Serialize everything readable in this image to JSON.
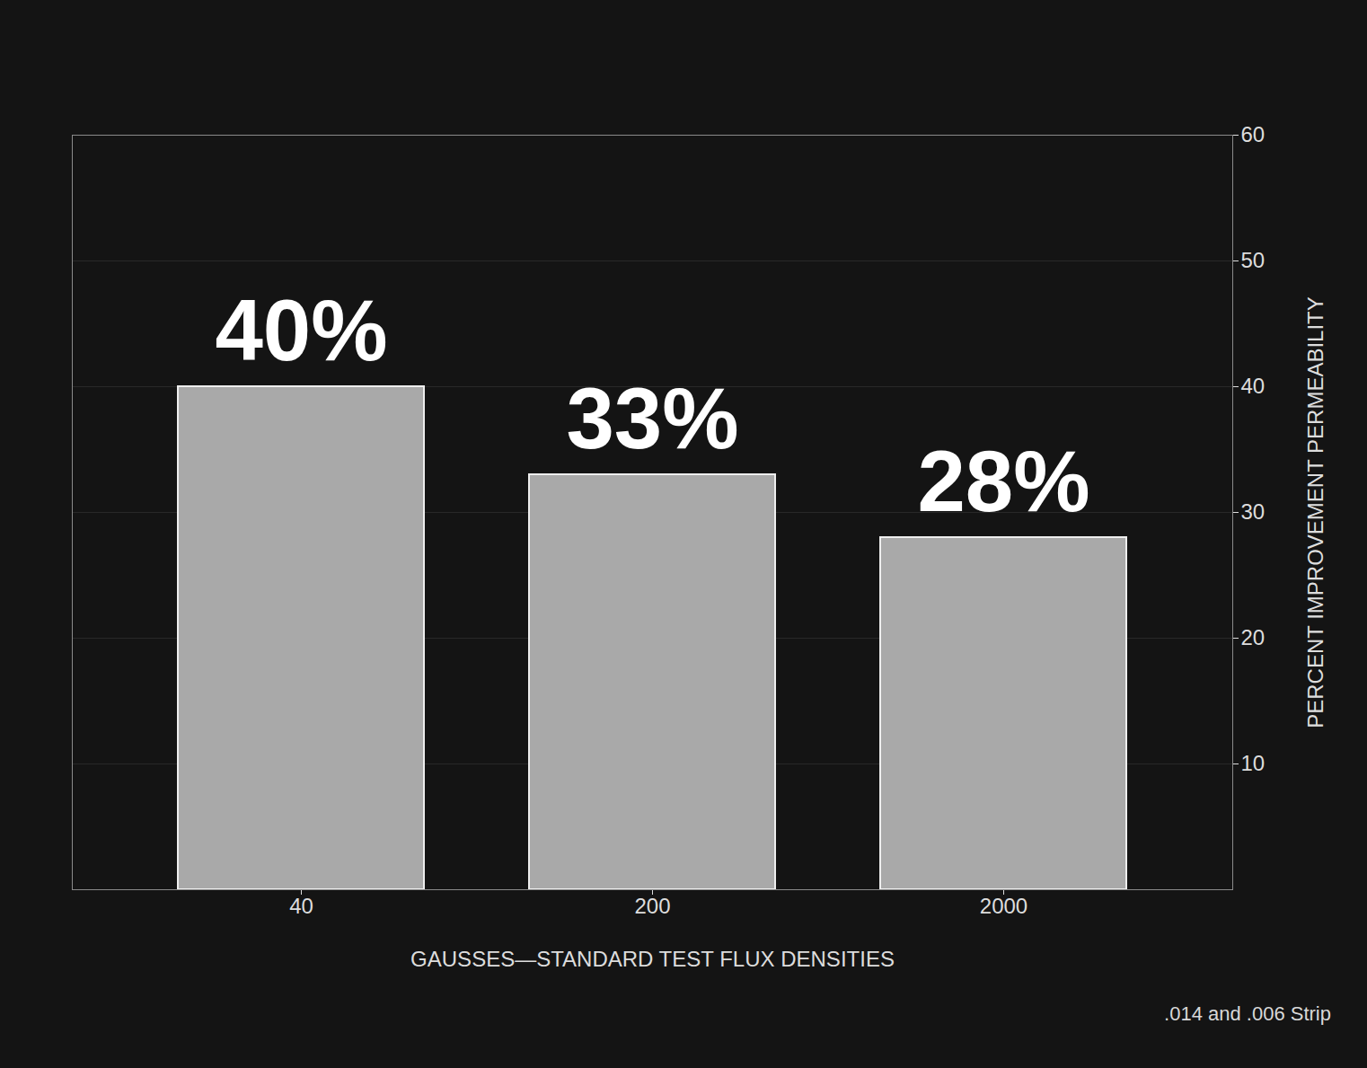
{
  "chart_data": {
    "type": "bar",
    "categories": [
      "40",
      "200",
      "2000"
    ],
    "values": [
      40,
      33,
      28
    ],
    "value_labels": [
      "40%",
      "33%",
      "28%"
    ],
    "data_labels": true,
    "color": "#a9a9a9",
    "xlabel": "GAUSSES—STANDARD TEST FLUX DENSITIES",
    "ylabel": "PERCENT IMPROVEMENT PERMEABILITY",
    "ylim": [
      0,
      60
    ],
    "yticks": [
      10,
      20,
      30,
      40,
      50,
      60
    ],
    "grid": true,
    "caption": ".014 and .006 Strip"
  }
}
